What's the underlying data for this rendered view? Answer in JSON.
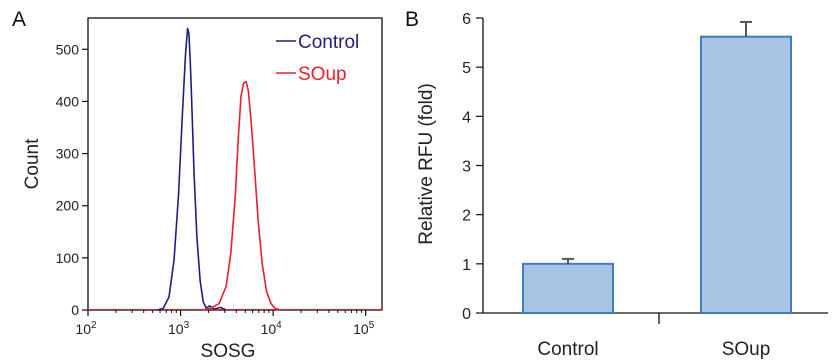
{
  "chart_data": [
    {
      "type": "line",
      "panel_label": "A",
      "xlabel": "SOSG",
      "ylabel": "Count",
      "xscale": "log",
      "xlim": [
        100,
        150000
      ],
      "ylim": [
        0,
        560
      ],
      "yticks": [
        0,
        100,
        200,
        300,
        400,
        500
      ],
      "xticks": [
        {
          "value": 100,
          "base": "10",
          "exp": "2"
        },
        {
          "value": 1000,
          "base": "10",
          "exp": "3"
        },
        {
          "value": 10000,
          "base": "10",
          "exp": "4"
        },
        {
          "value": 100000,
          "base": "10",
          "exp": "5"
        }
      ],
      "legend_position": "top-right",
      "series": [
        {
          "name": "Control",
          "color": "#1f1f7a",
          "x": [
            560,
            650,
            750,
            850,
            950,
            1050,
            1130,
            1190,
            1230,
            1270,
            1320,
            1400,
            1500,
            1630,
            1760,
            1900,
            2050,
            2300,
            2700,
            3100
          ],
          "y": [
            0,
            3,
            25,
            95,
            220,
            380,
            490,
            540,
            530,
            480,
            400,
            260,
            140,
            55,
            15,
            3,
            8,
            2,
            5,
            0
          ]
        },
        {
          "name": "SOup",
          "color": "#e8202a",
          "x": [
            1700,
            2100,
            2600,
            3100,
            3500,
            3900,
            4200,
            4500,
            4800,
            5100,
            5400,
            5800,
            6300,
            6900,
            7600,
            8500,
            9500,
            10500,
            12000
          ],
          "y": [
            0,
            3,
            12,
            45,
            110,
            220,
            330,
            410,
            435,
            438,
            420,
            360,
            270,
            170,
            90,
            35,
            12,
            3,
            0
          ]
        }
      ]
    },
    {
      "type": "bar",
      "panel_label": "B",
      "ylabel": "Relative RFU (fold)",
      "ylim": [
        0,
        6
      ],
      "yticks": [
        0,
        1,
        2,
        3,
        4,
        5,
        6
      ],
      "categories": [
        "Control",
        "SOup"
      ],
      "values": [
        1.0,
        5.62
      ],
      "errors": [
        0.1,
        0.3
      ],
      "bar_color": "#a7c4e4",
      "bar_edge": "#3f7cbf"
    }
  ]
}
